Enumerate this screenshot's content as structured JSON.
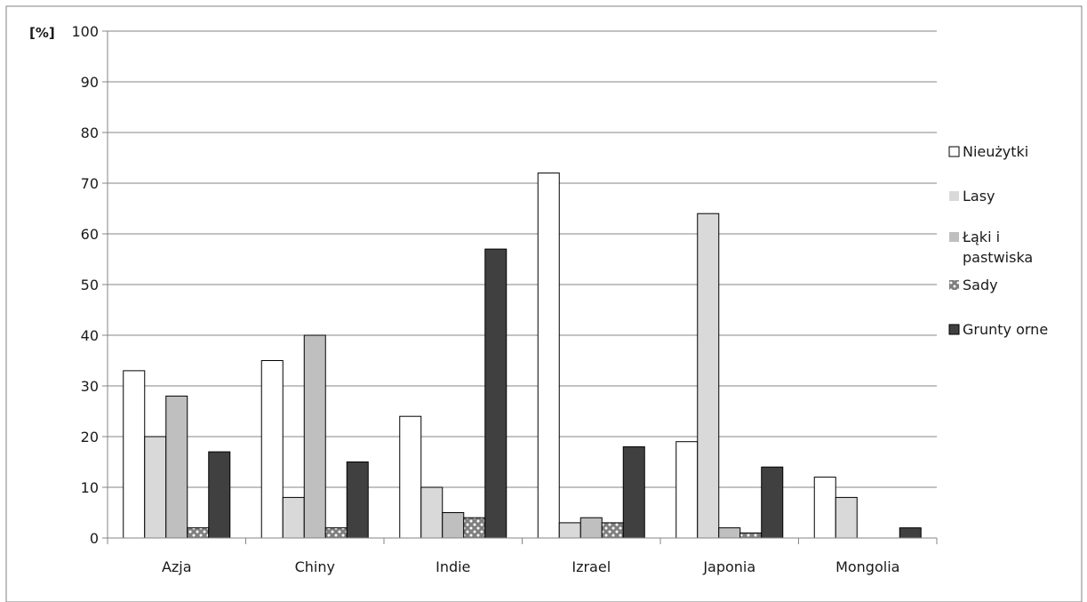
{
  "chart_data": {
    "type": "bar",
    "ylabel": "[%]",
    "ylim": [
      0,
      100
    ],
    "ytick_step": 10,
    "grid": true,
    "legend_position": "right",
    "categories": [
      "Azja",
      "Chiny",
      "Indie",
      "Izrael",
      "Japonia",
      "Mongolia"
    ],
    "series": [
      {
        "name": "Nieużytki",
        "values": [
          33,
          35,
          24,
          72,
          19,
          12
        ],
        "color": "#ffffff",
        "pattern": "solid"
      },
      {
        "name": "Lasy",
        "values": [
          20,
          8,
          10,
          3,
          64,
          8
        ],
        "color": "#d9d9d9",
        "pattern": "solid"
      },
      {
        "name_lines": [
          "Łąki i",
          "pastwiska"
        ],
        "values": [
          28,
          40,
          5,
          4,
          2,
          0
        ],
        "color": "#bfbfbf",
        "pattern": "solid"
      },
      {
        "name": "Sady",
        "values": [
          2,
          2,
          4,
          3,
          1,
          0
        ],
        "color": "#7f7f7f",
        "pattern": "dots"
      },
      {
        "name": "Grunty orne",
        "values": [
          17,
          15,
          57,
          18,
          14,
          2
        ],
        "color": "#404040",
        "pattern": "solid"
      }
    ]
  }
}
